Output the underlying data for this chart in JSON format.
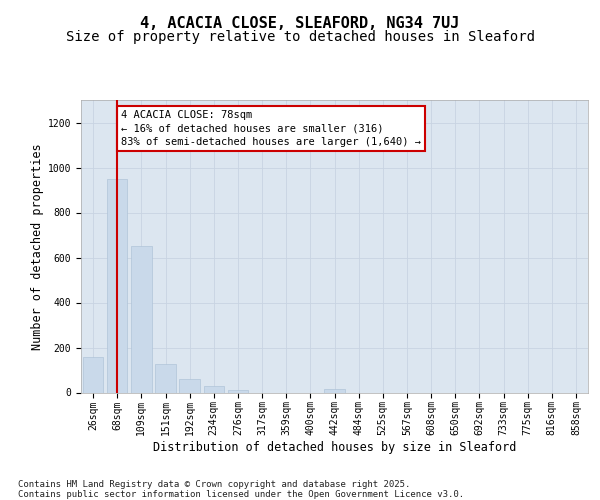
{
  "title_line1": "4, ACACIA CLOSE, SLEAFORD, NG34 7UJ",
  "title_line2": "Size of property relative to detached houses in Sleaford",
  "xlabel": "Distribution of detached houses by size in Sleaford",
  "ylabel": "Number of detached properties",
  "categories": [
    "26sqm",
    "68sqm",
    "109sqm",
    "151sqm",
    "192sqm",
    "234sqm",
    "276sqm",
    "317sqm",
    "359sqm",
    "400sqm",
    "442sqm",
    "484sqm",
    "525sqm",
    "567sqm",
    "608sqm",
    "650sqm",
    "692sqm",
    "733sqm",
    "775sqm",
    "816sqm",
    "858sqm"
  ],
  "values": [
    160,
    950,
    650,
    125,
    60,
    28,
    12,
    0,
    0,
    0,
    15,
    0,
    0,
    0,
    0,
    0,
    0,
    0,
    0,
    0,
    0
  ],
  "bar_color": "#c9d9ea",
  "bar_edge_color": "#b0c4d8",
  "grid_color": "#c8d4e2",
  "background_color": "#dce6f0",
  "vline_color": "#cc0000",
  "vline_x": 1.0,
  "annotation_text": "4 ACACIA CLOSE: 78sqm\n← 16% of detached houses are smaller (316)\n83% of semi-detached houses are larger (1,640) →",
  "annotation_box_edgecolor": "#cc0000",
  "ylim": [
    0,
    1300
  ],
  "yticks": [
    0,
    200,
    400,
    600,
    800,
    1000,
    1200
  ],
  "footer_text": "Contains HM Land Registry data © Crown copyright and database right 2025.\nContains public sector information licensed under the Open Government Licence v3.0.",
  "title_fontsize": 11,
  "subtitle_fontsize": 10,
  "ylabel_fontsize": 8.5,
  "xlabel_fontsize": 8.5,
  "tick_fontsize": 7,
  "annotation_fontsize": 7.5,
  "footer_fontsize": 6.5
}
